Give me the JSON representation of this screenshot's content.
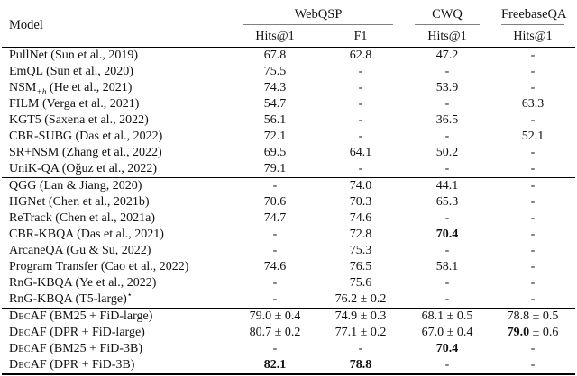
{
  "header": {
    "model": "Model",
    "groups": [
      {
        "label": "WebQSP",
        "cols": [
          "Hits@1",
          "F1"
        ]
      },
      {
        "label": "CWQ",
        "cols": [
          "Hits@1"
        ]
      },
      {
        "label": "FreebaseQA",
        "cols": [
          "Hits@1"
        ]
      }
    ]
  },
  "body": {
    "groups": [
      {
        "rows": [
          {
            "model": [
              {
                "t": "PullNet (Sun et al., 2019)"
              }
            ],
            "cells": [
              {
                "v": "67.8"
              },
              {
                "v": "62.8"
              },
              {
                "v": "47.2"
              },
              {
                "v": "-"
              }
            ]
          },
          {
            "model": [
              {
                "t": "EmQL (Sun et al., 2020)"
              }
            ],
            "cells": [
              {
                "v": "75.5"
              },
              {
                "v": "-"
              },
              {
                "v": "-"
              },
              {
                "v": "-"
              }
            ]
          },
          {
            "model": [
              {
                "t": "NSM"
              },
              {
                "t": "+h",
                "sub": true
              },
              {
                "t": " (He et al., 2021)"
              }
            ],
            "cells": [
              {
                "v": "74.3"
              },
              {
                "v": "-"
              },
              {
                "v": "53.9"
              },
              {
                "v": "-"
              }
            ]
          },
          {
            "model": [
              {
                "t": "FILM (Verga et al., 2021)"
              }
            ],
            "cells": [
              {
                "v": "54.7"
              },
              {
                "v": "-"
              },
              {
                "v": "-"
              },
              {
                "v": "63.3"
              }
            ]
          },
          {
            "model": [
              {
                "t": "KGT5 (Saxena et al., 2022)"
              }
            ],
            "cells": [
              {
                "v": "56.1"
              },
              {
                "v": "-"
              },
              {
                "v": "36.5"
              },
              {
                "v": "-"
              }
            ]
          },
          {
            "model": [
              {
                "t": "CBR-SUBG (Das et al., 2022)"
              }
            ],
            "cells": [
              {
                "v": "72.1"
              },
              {
                "v": "-"
              },
              {
                "v": "-"
              },
              {
                "v": "52.1"
              }
            ]
          },
          {
            "model": [
              {
                "t": "SR+NSM (Zhang et al., 2022)"
              }
            ],
            "cells": [
              {
                "v": "69.5"
              },
              {
                "v": "64.1"
              },
              {
                "v": "50.2"
              },
              {
                "v": "-"
              }
            ]
          },
          {
            "model": [
              {
                "t": "UniK-QA (Oğuz et al., 2022)"
              }
            ],
            "cells": [
              {
                "v": "79.1"
              },
              {
                "v": "-"
              },
              {
                "v": "-"
              },
              {
                "v": "-"
              }
            ]
          }
        ]
      },
      {
        "rows": [
          {
            "model": [
              {
                "t": "QGG (Lan & Jiang, 2020)"
              }
            ],
            "cells": [
              {
                "v": "-"
              },
              {
                "v": "74.0"
              },
              {
                "v": "44.1"
              },
              {
                "v": "-"
              }
            ]
          },
          {
            "model": [
              {
                "t": "HGNet (Chen et al., 2021b)"
              }
            ],
            "cells": [
              {
                "v": "70.6"
              },
              {
                "v": "70.3"
              },
              {
                "v": "65.3"
              },
              {
                "v": "-"
              }
            ]
          },
          {
            "model": [
              {
                "t": "ReTrack (Chen et al., 2021a)"
              }
            ],
            "cells": [
              {
                "v": "74.7"
              },
              {
                "v": "74.6"
              },
              {
                "v": "-"
              },
              {
                "v": "-"
              }
            ]
          },
          {
            "model": [
              {
                "t": "CBR-KBQA (Das et al., 2021)"
              }
            ],
            "cells": [
              {
                "v": "-"
              },
              {
                "v": "72.8"
              },
              {
                "v": "70.4",
                "bold": true
              },
              {
                "v": "-"
              }
            ]
          },
          {
            "model": [
              {
                "t": "ArcaneQA (Gu & Su, 2022)"
              }
            ],
            "cells": [
              {
                "v": "-"
              },
              {
                "v": "75.3"
              },
              {
                "v": "-"
              },
              {
                "v": "-"
              }
            ]
          },
          {
            "model": [
              {
                "t": "Program Transfer (Cao et al., 2022)"
              }
            ],
            "cells": [
              {
                "v": "74.6"
              },
              {
                "v": "76.5"
              },
              {
                "v": "58.1"
              },
              {
                "v": "-"
              }
            ]
          },
          {
            "model": [
              {
                "t": "RnG-KBQA (Ye et al., 2022)"
              }
            ],
            "cells": [
              {
                "v": "-"
              },
              {
                "v": "75.6"
              },
              {
                "v": "-"
              },
              {
                "v": "-"
              }
            ]
          },
          {
            "model": [
              {
                "t": "RnG-KBQA (T5-large)"
              },
              {
                "t": "⋆",
                "sup": true
              }
            ],
            "cells": [
              {
                "v": "-"
              },
              {
                "v": "76.2",
                "pm": "0.2"
              },
              {
                "v": "-"
              },
              {
                "v": "-"
              }
            ]
          }
        ]
      },
      {
        "rows": [
          {
            "model": [
              {
                "t": "Dec",
                "sc": true
              },
              {
                "t": "AF (BM25 + FiD-large)"
              }
            ],
            "cells": [
              {
                "v": "79.0",
                "pm": "0.4"
              },
              {
                "v": "74.9",
                "pm": "0.3"
              },
              {
                "v": "68.1",
                "pm": "0.5"
              },
              {
                "v": "78.8",
                "pm": "0.5"
              }
            ]
          },
          {
            "model": [
              {
                "t": "Dec",
                "sc": true
              },
              {
                "t": "AF (DPR + FiD-large)"
              }
            ],
            "cells": [
              {
                "v": "80.7",
                "pm": "0.2"
              },
              {
                "v": "77.1",
                "pm": "0.2"
              },
              {
                "v": "67.0",
                "pm": "0.4"
              },
              {
                "v": "79.0",
                "pm": "0.6",
                "bold": true
              }
            ]
          },
          {
            "model": [
              {
                "t": "Dec",
                "sc": true
              },
              {
                "t": "AF (BM25 + FiD-3B)"
              }
            ],
            "cells": [
              {
                "v": "-"
              },
              {
                "v": "-"
              },
              {
                "v": "70.4",
                "bold": true
              },
              {
                "v": "-"
              }
            ]
          },
          {
            "model": [
              {
                "t": "Dec",
                "sc": true
              },
              {
                "t": "AF (DPR + FiD-3B)"
              }
            ],
            "cells": [
              {
                "v": "82.1",
                "bold": true
              },
              {
                "v": "78.8",
                "bold": true
              },
              {
                "v": "-"
              },
              {
                "v": "-"
              }
            ]
          }
        ]
      }
    ]
  },
  "colors": {
    "background": "#ffffff",
    "text": "#111111",
    "rule_heavy": "#000000",
    "rule_light": "#808080"
  },
  "symbols": {
    "plus_minus": "±",
    "missing_value": "-"
  }
}
